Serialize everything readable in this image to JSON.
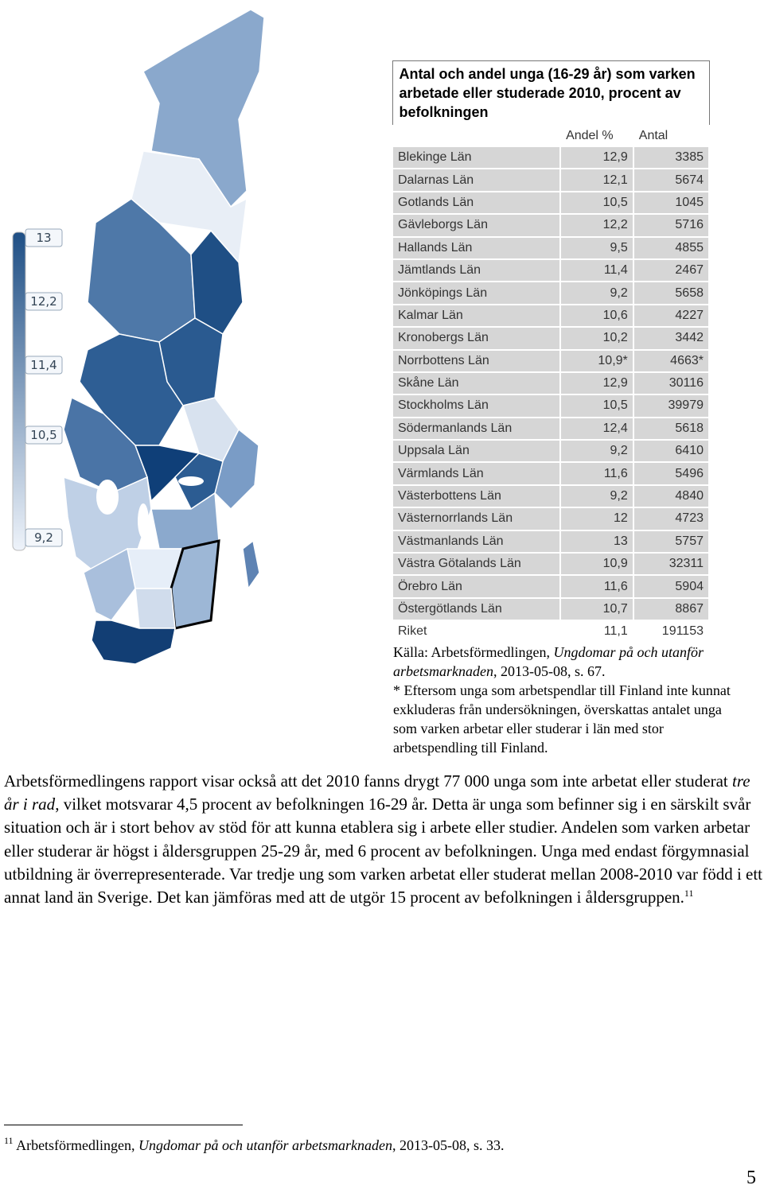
{
  "legend": [
    "13",
    "12,2",
    "11,4",
    "10,5",
    "9,2"
  ],
  "table": {
    "title": "Antal och andel unga (16-29 år) som varken arbetade eller studerade 2010, procent av befolkningen",
    "header": [
      "Andel %",
      "Antal"
    ],
    "rows": [
      [
        "Blekinge Län",
        "12,9",
        "3385"
      ],
      [
        "Dalarnas Län",
        "12,1",
        "5674"
      ],
      [
        "Gotlands Län",
        "10,5",
        "1045"
      ],
      [
        "Gävleborgs Län",
        "12,2",
        "5716"
      ],
      [
        "Hallands Län",
        "9,5",
        "4855"
      ],
      [
        "Jämtlands Län",
        "11,4",
        "2467"
      ],
      [
        "Jönköpings Län",
        "9,2",
        "5658"
      ],
      [
        "Kalmar Län",
        "10,6",
        "4227"
      ],
      [
        "Kronobergs Län",
        "10,2",
        "3442"
      ],
      [
        "Norrbottens Län",
        "10,9*",
        "4663*"
      ],
      [
        "Skåne Län",
        "12,9",
        "30116"
      ],
      [
        "Stockholms Län",
        "10,5",
        "39979"
      ],
      [
        "Södermanlands Län",
        "12,4",
        "5618"
      ],
      [
        "Uppsala Län",
        "9,2",
        "6410"
      ],
      [
        "Värmlands Län",
        "11,6",
        "5496"
      ],
      [
        "Västerbottens Län",
        "9,2",
        "4840"
      ],
      [
        "Västernorrlands Län",
        "12",
        "4723"
      ],
      [
        "Västmanlands Län",
        "13",
        "5757"
      ],
      [
        "Västra Götalands Län",
        "10,9",
        "32311"
      ],
      [
        "Örebro Län",
        "11,6",
        "5904"
      ],
      [
        "Östergötlands Län",
        "10,7",
        "8867"
      ],
      [
        "Riket",
        "11,1",
        "191153"
      ]
    ]
  },
  "source": {
    "prefix": "Källa: Arbetsförmedlingen, ",
    "italic": "Ungdomar på och utanför arbetsmarknaden",
    "suffix": ", 2013-05-08, s. 67."
  },
  "note": "* Eftersom unga som arbetspendlar till Finland inte kunnat exkluderas från undersökningen, överskattas antalet unga som varken arbetar eller studerar i län med stor arbetspendling till Finland.",
  "body": {
    "text1": "Arbetsförmedlingens rapport visar också att det 2010 fanns drygt 77 000 unga som inte arbetat eller studerat ",
    "italic": "tre år i rad",
    "text2": ", vilket motsvarar 4,5 procent av befolkningen 16-29 år. Detta är unga som befinner sig i en särskilt svår situation och är i stort behov av stöd för att kunna etablera sig i arbete eller studier. Andelen som varken arbetar eller studerar är högst i åldersgruppen 25-29 år, med 6 procent av befolkningen. Unga med endast förgymnasial utbildning är överrepresenterade. Var tredje ung som varken arbetat eller studerat mellan 2008-2010 var född i ett annat land än Sverige. Det kan jämföras med att de utgör 15 procent av befolkningen i åldersgruppen.",
    "ref": "11"
  },
  "footnote": {
    "ref": "11",
    "prefix": " Arbetsförmedlingen, ",
    "italic": "Ungdomar på och utanför arbetsmarknaden",
    "suffix": ", 2013-05-08, s. 33."
  },
  "page_number": "5"
}
